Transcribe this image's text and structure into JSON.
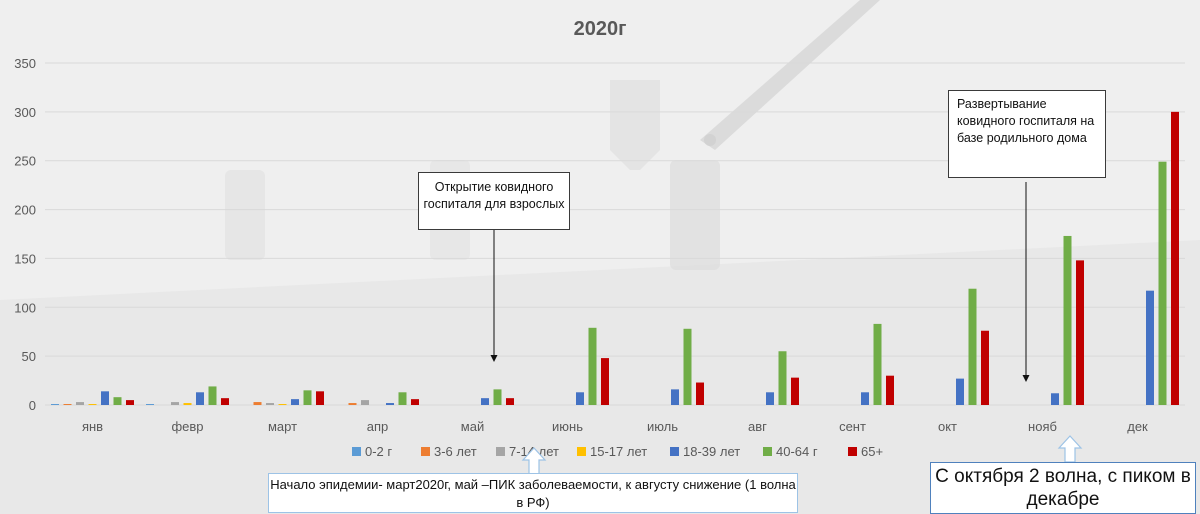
{
  "chart_data": {
    "type": "bar",
    "title": "2020г",
    "xlabel": "",
    "ylabel": "",
    "ylim": [
      0,
      350
    ],
    "yticks": [
      0,
      50,
      100,
      150,
      200,
      250,
      300,
      350
    ],
    "grid": true,
    "legend_position": "bottom",
    "categories": [
      "янв",
      "февр",
      "март",
      "апр",
      "май",
      "июнь",
      "июль",
      "авг",
      "сент",
      "окт",
      "нояб",
      "дек"
    ],
    "series": [
      {
        "name": "0-2 г",
        "color": "#5b9bd5",
        "values": [
          1,
          1,
          0,
          0,
          0,
          0,
          0,
          0,
          0,
          0,
          0,
          0
        ]
      },
      {
        "name": "3-6 лет",
        "color": "#ed7d31",
        "values": [
          1,
          0,
          3,
          2,
          0,
          0,
          0,
          0,
          0,
          0,
          0,
          0
        ]
      },
      {
        "name": "7-14 лет",
        "color": "#a5a5a5",
        "values": [
          3,
          3,
          2,
          5,
          0,
          0,
          0,
          0,
          0,
          0,
          0,
          0
        ]
      },
      {
        "name": "15-17 лет",
        "color": "#ffc000",
        "values": [
          1,
          2,
          1,
          0,
          0,
          0,
          0,
          0,
          0,
          0,
          0,
          0
        ]
      },
      {
        "name": "18-39 лет",
        "color": "#4472c4",
        "values": [
          14,
          13,
          6,
          2,
          7,
          13,
          16,
          13,
          13,
          27,
          12,
          117
        ]
      },
      {
        "name": "40-64 г",
        "color": "#70ad47",
        "values": [
          8,
          19,
          15,
          13,
          16,
          79,
          78,
          55,
          83,
          119,
          173,
          249
        ]
      },
      {
        "name": "65+",
        "color": "#c00000",
        "values": [
          5,
          7,
          14,
          6,
          7,
          48,
          23,
          28,
          30,
          76,
          148,
          300
        ]
      }
    ]
  },
  "annotations": {
    "callout_hospital_adults": "Открытие ковидного госпиталя для взрослых",
    "callout_maternity": "Развертывание ковидного госпиталя на базе родильного дома",
    "note_first_wave": "Начало эпидемии- март2020г, май –ПИК заболеваемости, к августу снижение (1 волна в РФ)",
    "note_second_wave": "С октября 2 волна, с пиком в декабре"
  },
  "colors": {
    "axis_text": "#595959",
    "gridline": "#d9d9d9",
    "arrow": "#111111",
    "up_arrow_fill": "#ffffff",
    "up_arrow_stroke": "#9dc3e6"
  }
}
